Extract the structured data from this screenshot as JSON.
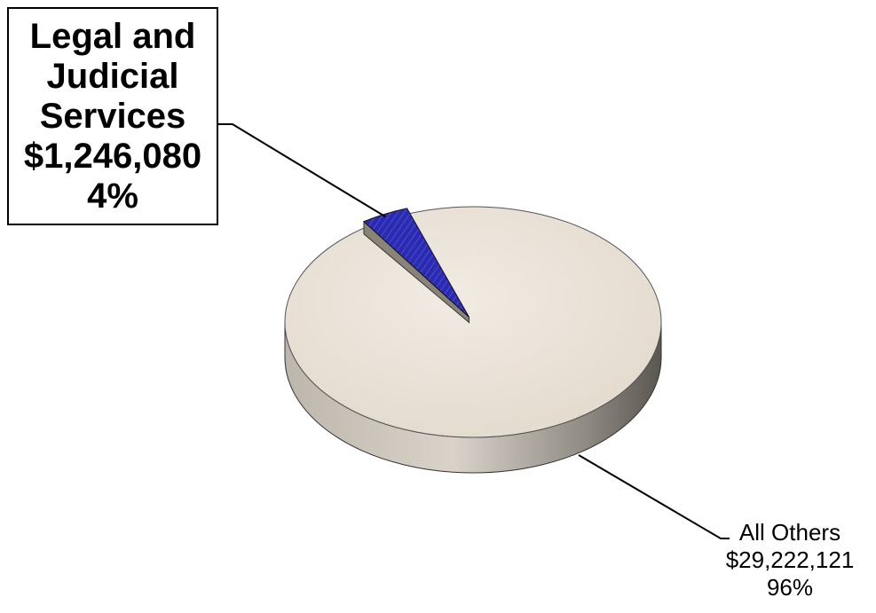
{
  "chart_data": {
    "type": "pie",
    "slices": [
      {
        "label_lines": [
          "Legal and",
          "Judicial",
          "Services"
        ],
        "value_text": "$1,246,080",
        "percent_text": "4%",
        "value": 1246080,
        "color": "#2b2bb0"
      },
      {
        "label_lines": [
          "All Others"
        ],
        "value_text": "$29,222,121",
        "percent_text": "96%",
        "value": 29222121,
        "color": "#ece5db"
      }
    ],
    "title": "",
    "legend": "none"
  }
}
